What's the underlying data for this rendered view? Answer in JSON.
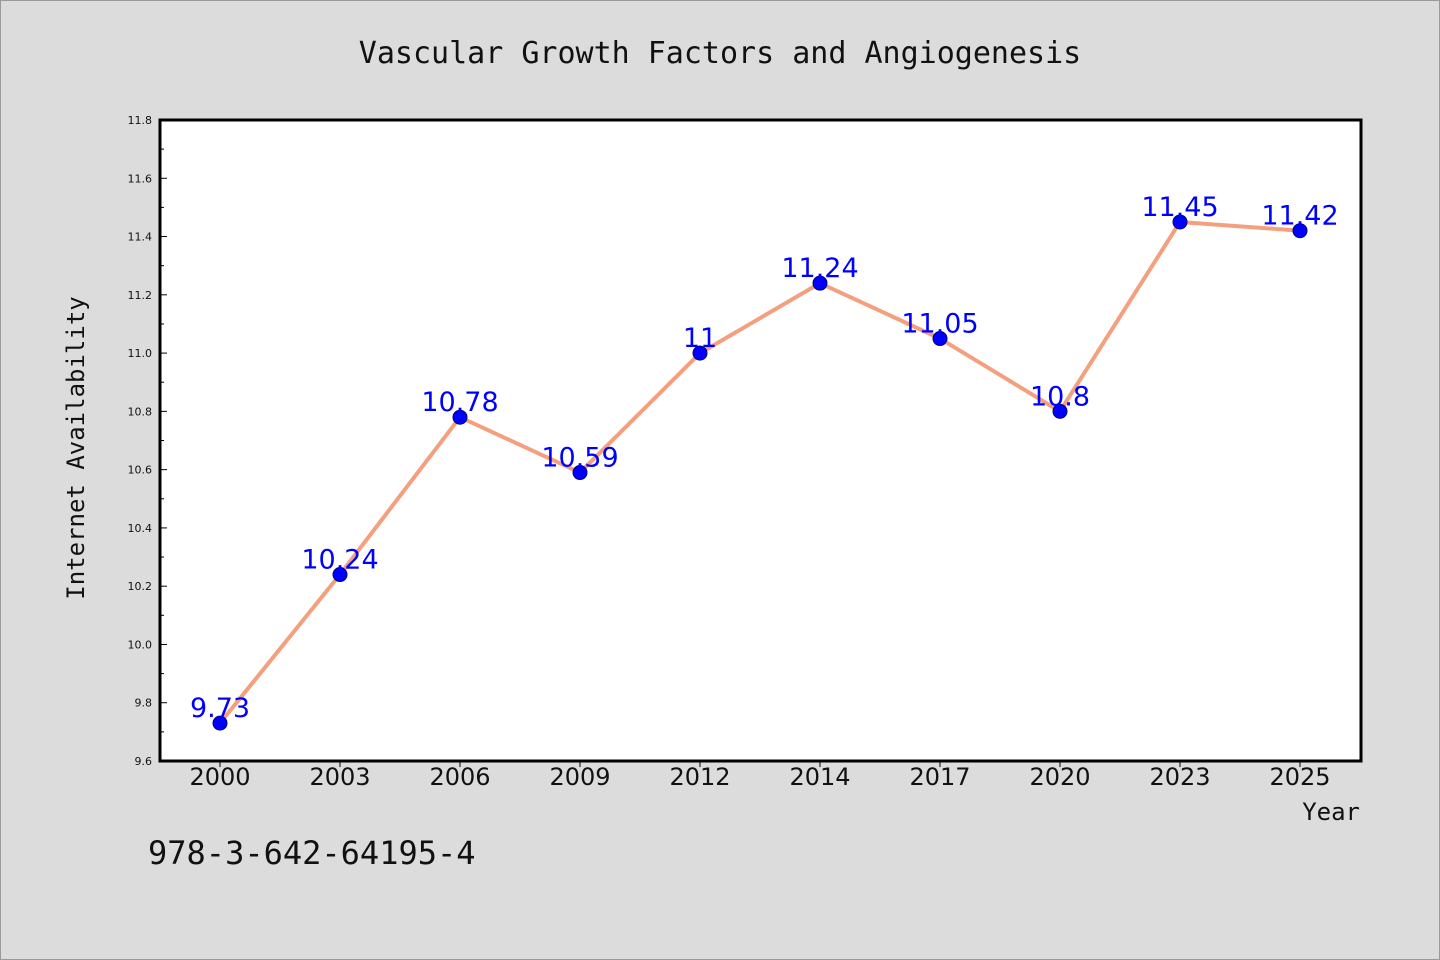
{
  "colors": {
    "background": "#dcdcdc",
    "plot_area": "#ffffff",
    "line": "#f4a07e",
    "marker": "#0000ff",
    "data_label": "#0000ff"
  },
  "footer_text": "978-3-642-64195-4",
  "chart_data": {
    "type": "line",
    "title": "Vascular Growth Factors and Angiogenesis",
    "xlabel": "Year",
    "ylabel": "Internet Availability",
    "categories": [
      "2000",
      "2003",
      "2006",
      "2009",
      "2012",
      "2014",
      "2017",
      "2020",
      "2023",
      "2025"
    ],
    "values": [
      9.73,
      10.24,
      10.78,
      10.59,
      11,
      11.24,
      11.05,
      10.8,
      11.45,
      11.42
    ],
    "data_labels": [
      "9.73",
      "10.24",
      "10.78",
      "10.59",
      "11",
      "11.24",
      "11.05",
      "10.8",
      "11.45",
      "11.42"
    ],
    "ylim": [
      9.6,
      11.8
    ],
    "yticks": [
      "9.6",
      "9.8",
      "10.0",
      "10.2",
      "10.4",
      "10.6",
      "10.8",
      "11.0",
      "11.2",
      "11.4",
      "11.6",
      "11.8"
    ],
    "grid": false,
    "legend": "none",
    "marker": "circle"
  }
}
